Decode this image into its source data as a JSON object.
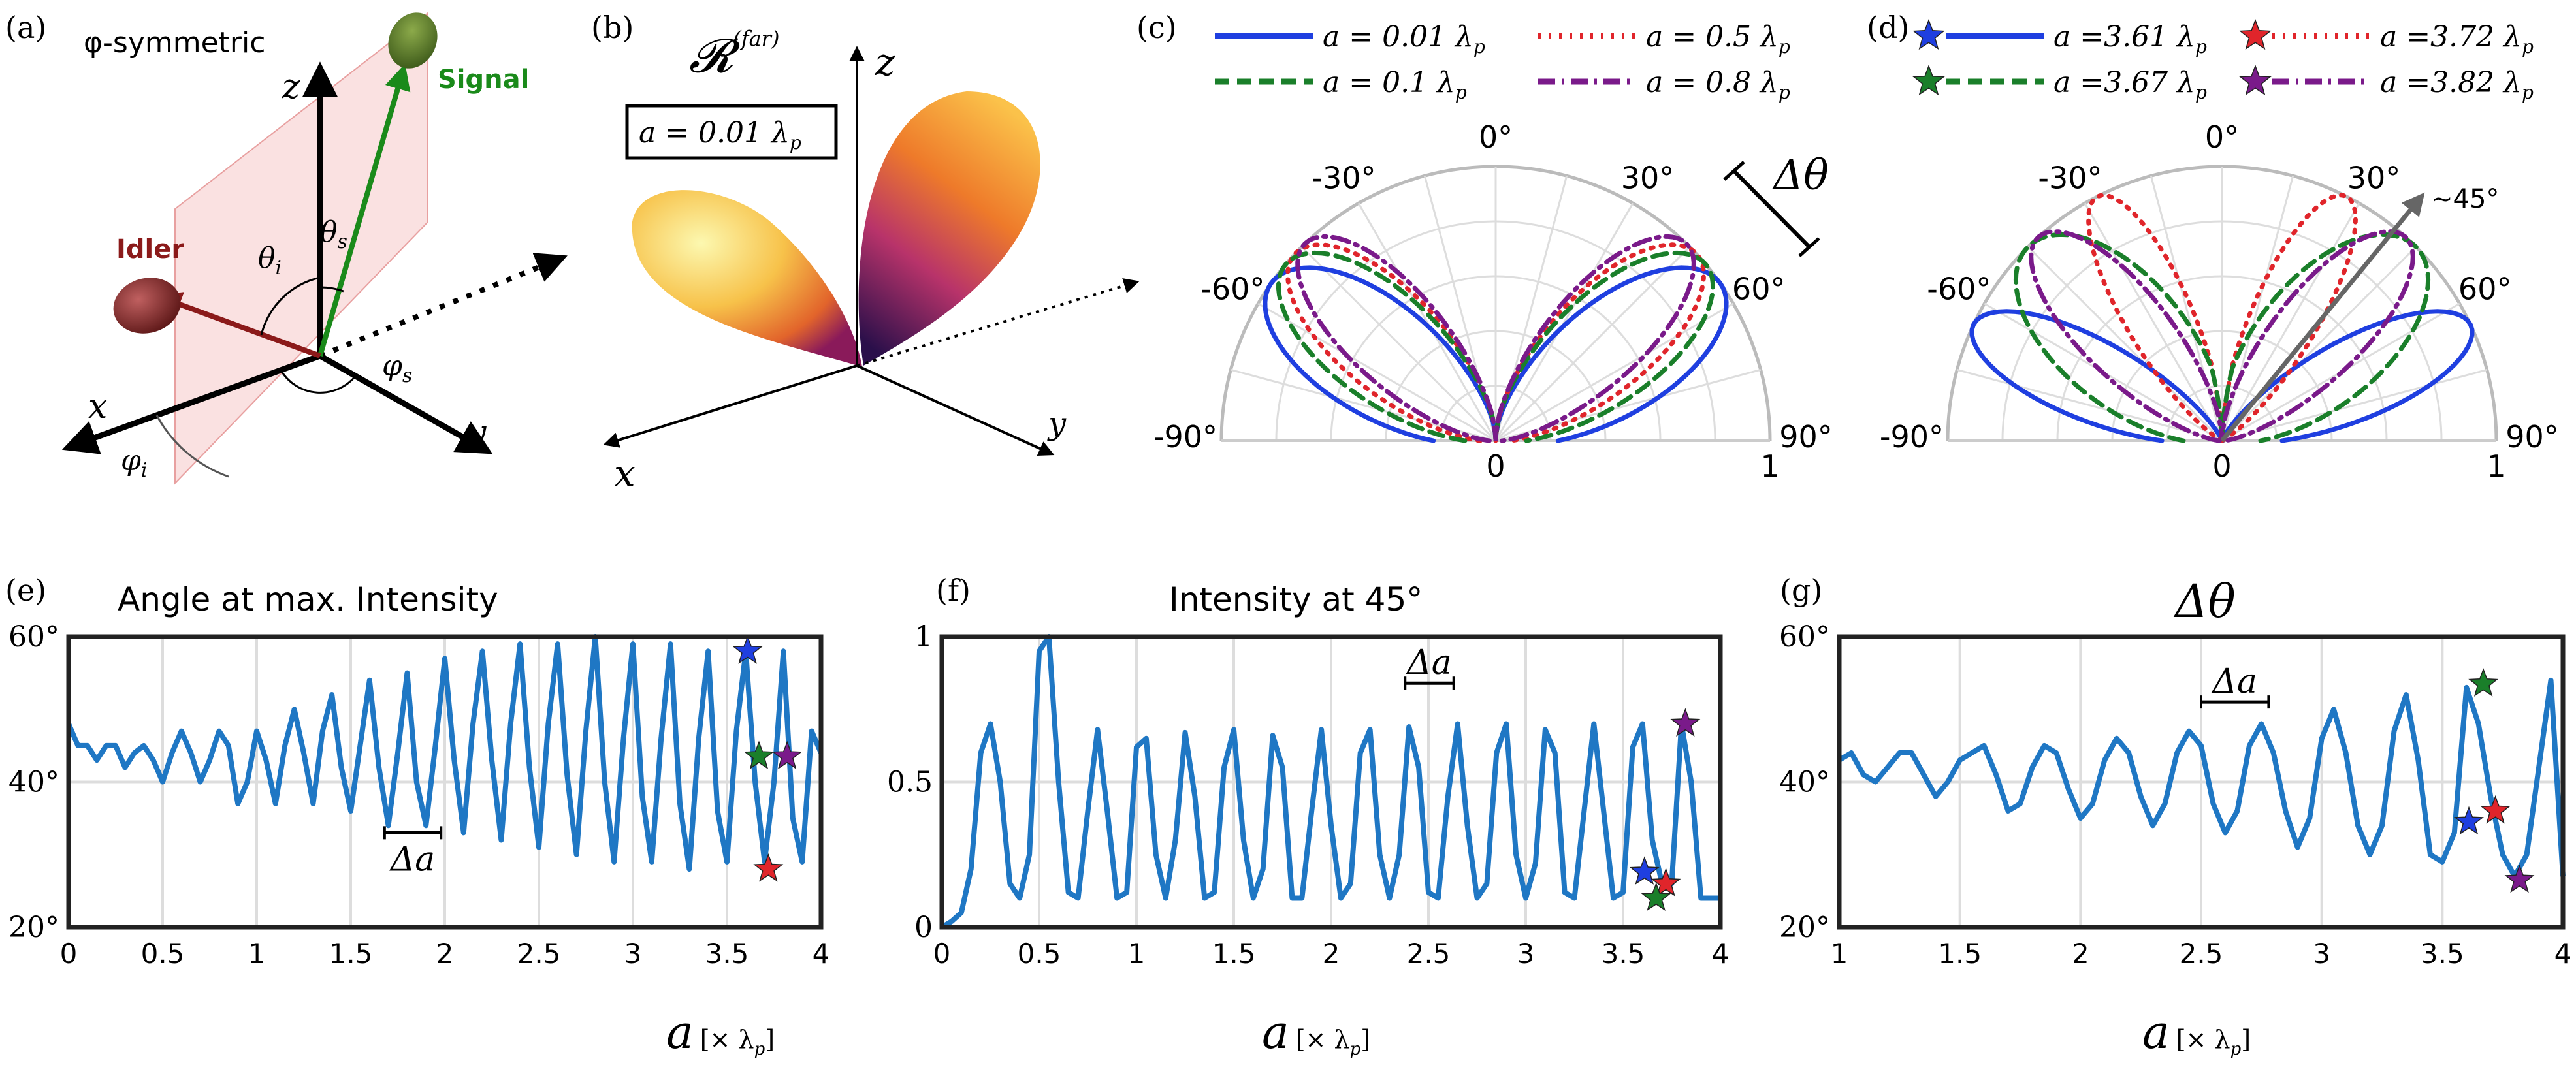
{
  "panels": {
    "a": {
      "tag": "(a)",
      "phi_symmetric": "φ-symmetric",
      "signal": "Signal",
      "idler": "Idler",
      "z": "z",
      "x": "x",
      "y": "y",
      "theta_i": "θ",
      "theta_i_sub": "i",
      "theta_s": "θ",
      "theta_s_sub": "s",
      "phi_s": "φ",
      "phi_s_sub": "s",
      "phi_i": "φ",
      "phi_i_sub": "i"
    },
    "b": {
      "tag": "(b)",
      "R": "𝓡",
      "R_sup": "(far)",
      "box_label": "a = 0.01 λ",
      "box_sub": "p",
      "z": "z",
      "x": "x",
      "y": "y"
    },
    "c": {
      "tag": "(c)",
      "delta_theta": "Δθ"
    },
    "d": {
      "tag": "(d)",
      "arrow_label": "~45°"
    },
    "e": {
      "tag": "(e)",
      "title": "Angle at max. Intensity",
      "delta_a": "Δa"
    },
    "f": {
      "tag": "(f)",
      "title": "Intensity at 45°",
      "delta_a": "Δa"
    },
    "g": {
      "tag": "(g)",
      "title": "Δθ",
      "delta_a": "Δa"
    },
    "xlabel": {
      "a": "a",
      "unit": "[× λ",
      "unit_sub": "p",
      "close": "]"
    }
  },
  "colors": {
    "blue": "#1f3fe0",
    "green": "#1a7f2a",
    "red": "#e0252b",
    "purple": "#7a1a8a",
    "line": "#1f77c4",
    "idler": "#8b1a1a",
    "signal": "#1a8a1a",
    "plane": "#f6c8c8"
  },
  "chart_data": [
    {
      "id": "c",
      "type": "polar",
      "theta_ticks": [
        "0°",
        "-30°",
        "30°",
        "-60°",
        "60°",
        "-90°",
        "90°"
      ],
      "r_ticks": [
        "0",
        "1"
      ],
      "series": [
        {
          "name": "a = 0.01 λp",
          "legend_a": "a = 0.01 λ",
          "legend_sub": "p",
          "style": "solid",
          "color": "#1f3fe0",
          "peak_deg": 55,
          "width_deg": 34
        },
        {
          "name": "a = 0.5 λp",
          "legend_a": "a = 0.5 λ",
          "legend_sub": "p",
          "style": "dotted",
          "color": "#e0252b",
          "peak_deg": 47,
          "width_deg": 30
        },
        {
          "name": "a = 0.1 λp",
          "legend_a": "a = 0.1 λ",
          "legend_sub": "p",
          "style": "dashed",
          "color": "#1a7f2a",
          "peak_deg": 50,
          "width_deg": 32
        },
        {
          "name": "a = 0.8 λp",
          "legend_a": "a = 0.8 λ",
          "legend_sub": "p",
          "style": "dashdot",
          "color": "#7a1a8a",
          "peak_deg": 44,
          "width_deg": 28
        }
      ]
    },
    {
      "id": "d",
      "type": "polar",
      "theta_ticks": [
        "0°",
        "-30°",
        "30°",
        "-60°",
        "60°",
        "-90°",
        "90°"
      ],
      "r_ticks": [
        "0",
        "1"
      ],
      "series": [
        {
          "name": "a = 3.61 λp",
          "legend_a": "a =3.61 λ",
          "legend_sub": "p",
          "style": "solid",
          "color": "#1f3fe0",
          "peak_deg": 65,
          "width_deg": 24
        },
        {
          "name": "a = 3.72 λp",
          "legend_a": "a =3.72 λ",
          "legend_sub": "p",
          "style": "dotted",
          "color": "#e0252b",
          "peak_deg": 27,
          "width_deg": 20
        },
        {
          "name": "a = 3.67 λp",
          "legend_a": "a =3.67 λ",
          "legend_sub": "p",
          "style": "dashed",
          "color": "#1a7f2a",
          "peak_deg": 45,
          "width_deg": 38
        },
        {
          "name": "a = 3.82 λp",
          "legend_a": "a =3.82 λ",
          "legend_sub": "p",
          "style": "dashdot",
          "color": "#7a1a8a",
          "peak_deg": 42,
          "width_deg": 26
        }
      ]
    },
    {
      "id": "e",
      "type": "line",
      "title": "Angle at max. Intensity",
      "xlim": [
        0,
        4
      ],
      "ylim": [
        20,
        60
      ],
      "xticks": [
        0,
        0.5,
        1,
        1.5,
        2,
        2.5,
        3,
        3.5,
        4
      ],
      "xtick_labels": [
        "0",
        "0.5",
        "1",
        "1.5",
        "2",
        "2.5",
        "3",
        "3.5",
        "4"
      ],
      "yticks": [
        20,
        40,
        60
      ],
      "ytick_labels": [
        "20°",
        "40°",
        "60°"
      ],
      "x": [
        0,
        0.05,
        0.1,
        0.15,
        0.2,
        0.25,
        0.3,
        0.35,
        0.4,
        0.45,
        0.5,
        0.55,
        0.6,
        0.65,
        0.7,
        0.75,
        0.8,
        0.85,
        0.9,
        0.95,
        1,
        1.05,
        1.1,
        1.15,
        1.2,
        1.25,
        1.3,
        1.35,
        1.4,
        1.45,
        1.5,
        1.55,
        1.6,
        1.65,
        1.7,
        1.75,
        1.8,
        1.85,
        1.9,
        1.95,
        2,
        2.05,
        2.1,
        2.15,
        2.2,
        2.25,
        2.3,
        2.35,
        2.4,
        2.45,
        2.5,
        2.55,
        2.6,
        2.65,
        2.7,
        2.75,
        2.8,
        2.85,
        2.9,
        2.95,
        3,
        3.05,
        3.1,
        3.15,
        3.2,
        3.25,
        3.3,
        3.35,
        3.4,
        3.45,
        3.5,
        3.55,
        3.6,
        3.65,
        3.7,
        3.75,
        3.8,
        3.85,
        3.9,
        3.95,
        4
      ],
      "y": [
        48,
        45,
        45,
        43,
        45,
        45,
        42,
        44,
        45,
        43,
        40,
        44,
        47,
        44,
        40,
        43,
        47,
        45,
        37,
        40,
        47,
        43,
        37,
        45,
        50,
        44,
        37,
        47,
        52,
        42,
        36,
        45,
        54,
        42,
        34,
        44,
        55,
        40,
        34,
        45,
        57,
        43,
        33,
        48,
        58,
        43,
        32,
        48,
        59,
        42,
        31,
        48,
        59,
        41,
        30,
        47,
        60,
        40,
        29,
        46,
        59,
        38,
        29,
        46,
        59,
        37,
        28,
        46,
        58,
        36,
        29,
        47,
        58,
        40,
        29,
        40,
        58,
        35,
        29,
        47,
        44
      ],
      "markers": [
        {
          "x": 3.61,
          "y": 58,
          "color": "#1f3fe0"
        },
        {
          "x": 3.67,
          "y": 43.5,
          "color": "#1a7f2a"
        },
        {
          "x": 3.82,
          "y": 43.5,
          "color": "#7a1a8a"
        },
        {
          "x": 3.72,
          "y": 28,
          "color": "#e0252b"
        }
      ],
      "delta_a": [
        1.68,
        1.98
      ]
    },
    {
      "id": "f",
      "type": "line",
      "title": "Intensity at 45°",
      "xlim": [
        0,
        4
      ],
      "ylim": [
        0,
        1
      ],
      "xticks": [
        0,
        0.5,
        1,
        1.5,
        2,
        2.5,
        3,
        3.5,
        4
      ],
      "xtick_labels": [
        "0",
        "0.5",
        "1",
        "1.5",
        "2",
        "2.5",
        "3",
        "3.5",
        "4"
      ],
      "yticks": [
        0,
        0.5,
        1
      ],
      "ytick_labels": [
        "0",
        "0.5",
        "1"
      ],
      "x": [
        0,
        0.05,
        0.1,
        0.15,
        0.2,
        0.25,
        0.3,
        0.35,
        0.4,
        0.45,
        0.5,
        0.55,
        0.6,
        0.65,
        0.7,
        0.75,
        0.8,
        0.85,
        0.9,
        0.95,
        1,
        1.05,
        1.1,
        1.15,
        1.2,
        1.25,
        1.3,
        1.35,
        1.4,
        1.45,
        1.5,
        1.55,
        1.6,
        1.65,
        1.7,
        1.75,
        1.8,
        1.85,
        1.9,
        1.95,
        2,
        2.05,
        2.1,
        2.15,
        2.2,
        2.25,
        2.3,
        2.35,
        2.4,
        2.45,
        2.5,
        2.55,
        2.6,
        2.65,
        2.7,
        2.75,
        2.8,
        2.85,
        2.9,
        2.95,
        3,
        3.05,
        3.1,
        3.15,
        3.2,
        3.25,
        3.3,
        3.35,
        3.4,
        3.45,
        3.5,
        3.55,
        3.6,
        3.65,
        3.7,
        3.75,
        3.8,
        3.85,
        3.9,
        3.95,
        4
      ],
      "y": [
        0,
        0.02,
        0.05,
        0.2,
        0.6,
        0.7,
        0.5,
        0.15,
        0.1,
        0.25,
        0.95,
        1.0,
        0.5,
        0.12,
        0.1,
        0.4,
        0.68,
        0.4,
        0.1,
        0.12,
        0.62,
        0.65,
        0.25,
        0.1,
        0.3,
        0.67,
        0.45,
        0.1,
        0.12,
        0.55,
        0.68,
        0.3,
        0.1,
        0.2,
        0.66,
        0.55,
        0.1,
        0.1,
        0.4,
        0.68,
        0.35,
        0.1,
        0.15,
        0.6,
        0.68,
        0.25,
        0.1,
        0.25,
        0.69,
        0.55,
        0.12,
        0.1,
        0.45,
        0.7,
        0.35,
        0.1,
        0.15,
        0.6,
        0.7,
        0.25,
        0.1,
        0.22,
        0.68,
        0.6,
        0.12,
        0.1,
        0.4,
        0.7,
        0.4,
        0.1,
        0.12,
        0.62,
        0.7,
        0.3,
        0.15,
        0.15,
        0.7,
        0.5,
        0.1,
        0.1,
        0.1
      ],
      "markers": [
        {
          "x": 3.61,
          "y": 0.19,
          "color": "#1f3fe0"
        },
        {
          "x": 3.72,
          "y": 0.15,
          "color": "#e0252b"
        },
        {
          "x": 3.67,
          "y": 0.1,
          "color": "#1a7f2a"
        },
        {
          "x": 3.82,
          "y": 0.7,
          "color": "#7a1a8a"
        }
      ],
      "delta_a": [
        2.38,
        2.63
      ]
    },
    {
      "id": "g",
      "type": "line",
      "title": "Δθ",
      "xlim": [
        1,
        4
      ],
      "ylim": [
        20,
        60
      ],
      "xticks": [
        1,
        1.5,
        2,
        2.5,
        3,
        3.5,
        4
      ],
      "xtick_labels": [
        "1",
        "1.5",
        "2",
        "2.5",
        "3",
        "3.5",
        "4"
      ],
      "yticks": [
        20,
        40,
        60
      ],
      "ytick_labels": [
        "20°",
        "40°",
        "60°"
      ],
      "x": [
        1,
        1.05,
        1.1,
        1.15,
        1.2,
        1.25,
        1.3,
        1.35,
        1.4,
        1.45,
        1.5,
        1.55,
        1.6,
        1.65,
        1.7,
        1.75,
        1.8,
        1.85,
        1.9,
        1.95,
        2,
        2.05,
        2.1,
        2.15,
        2.2,
        2.25,
        2.3,
        2.35,
        2.4,
        2.45,
        2.5,
        2.55,
        2.6,
        2.65,
        2.7,
        2.75,
        2.8,
        2.85,
        2.9,
        2.95,
        3,
        3.05,
        3.1,
        3.15,
        3.2,
        3.25,
        3.3,
        3.35,
        3.4,
        3.45,
        3.5,
        3.55,
        3.6,
        3.65,
        3.7,
        3.75,
        3.8,
        3.85,
        3.9,
        3.95,
        4
      ],
      "y": [
        43,
        44,
        41,
        40,
        42,
        44,
        44,
        41,
        38,
        40,
        43,
        44,
        45,
        41,
        36,
        37,
        42,
        45,
        44,
        39,
        35,
        37,
        43,
        46,
        44,
        38,
        34,
        37,
        44,
        47,
        45,
        37,
        33,
        36,
        45,
        48,
        44,
        36,
        31,
        35,
        46,
        50,
        44,
        34,
        30,
        34,
        47,
        52,
        43,
        30,
        29,
        33,
        53,
        48,
        38,
        30,
        27,
        30,
        42,
        54,
        27
      ],
      "markers": [
        {
          "x": 3.67,
          "y": 53.5,
          "color": "#1a7f2a"
        },
        {
          "x": 3.61,
          "y": 34.5,
          "color": "#1f3fe0"
        },
        {
          "x": 3.72,
          "y": 36,
          "color": "#e0252b"
        },
        {
          "x": 3.82,
          "y": 26.5,
          "color": "#7a1a8a"
        }
      ],
      "delta_a": [
        2.5,
        2.78
      ]
    }
  ]
}
